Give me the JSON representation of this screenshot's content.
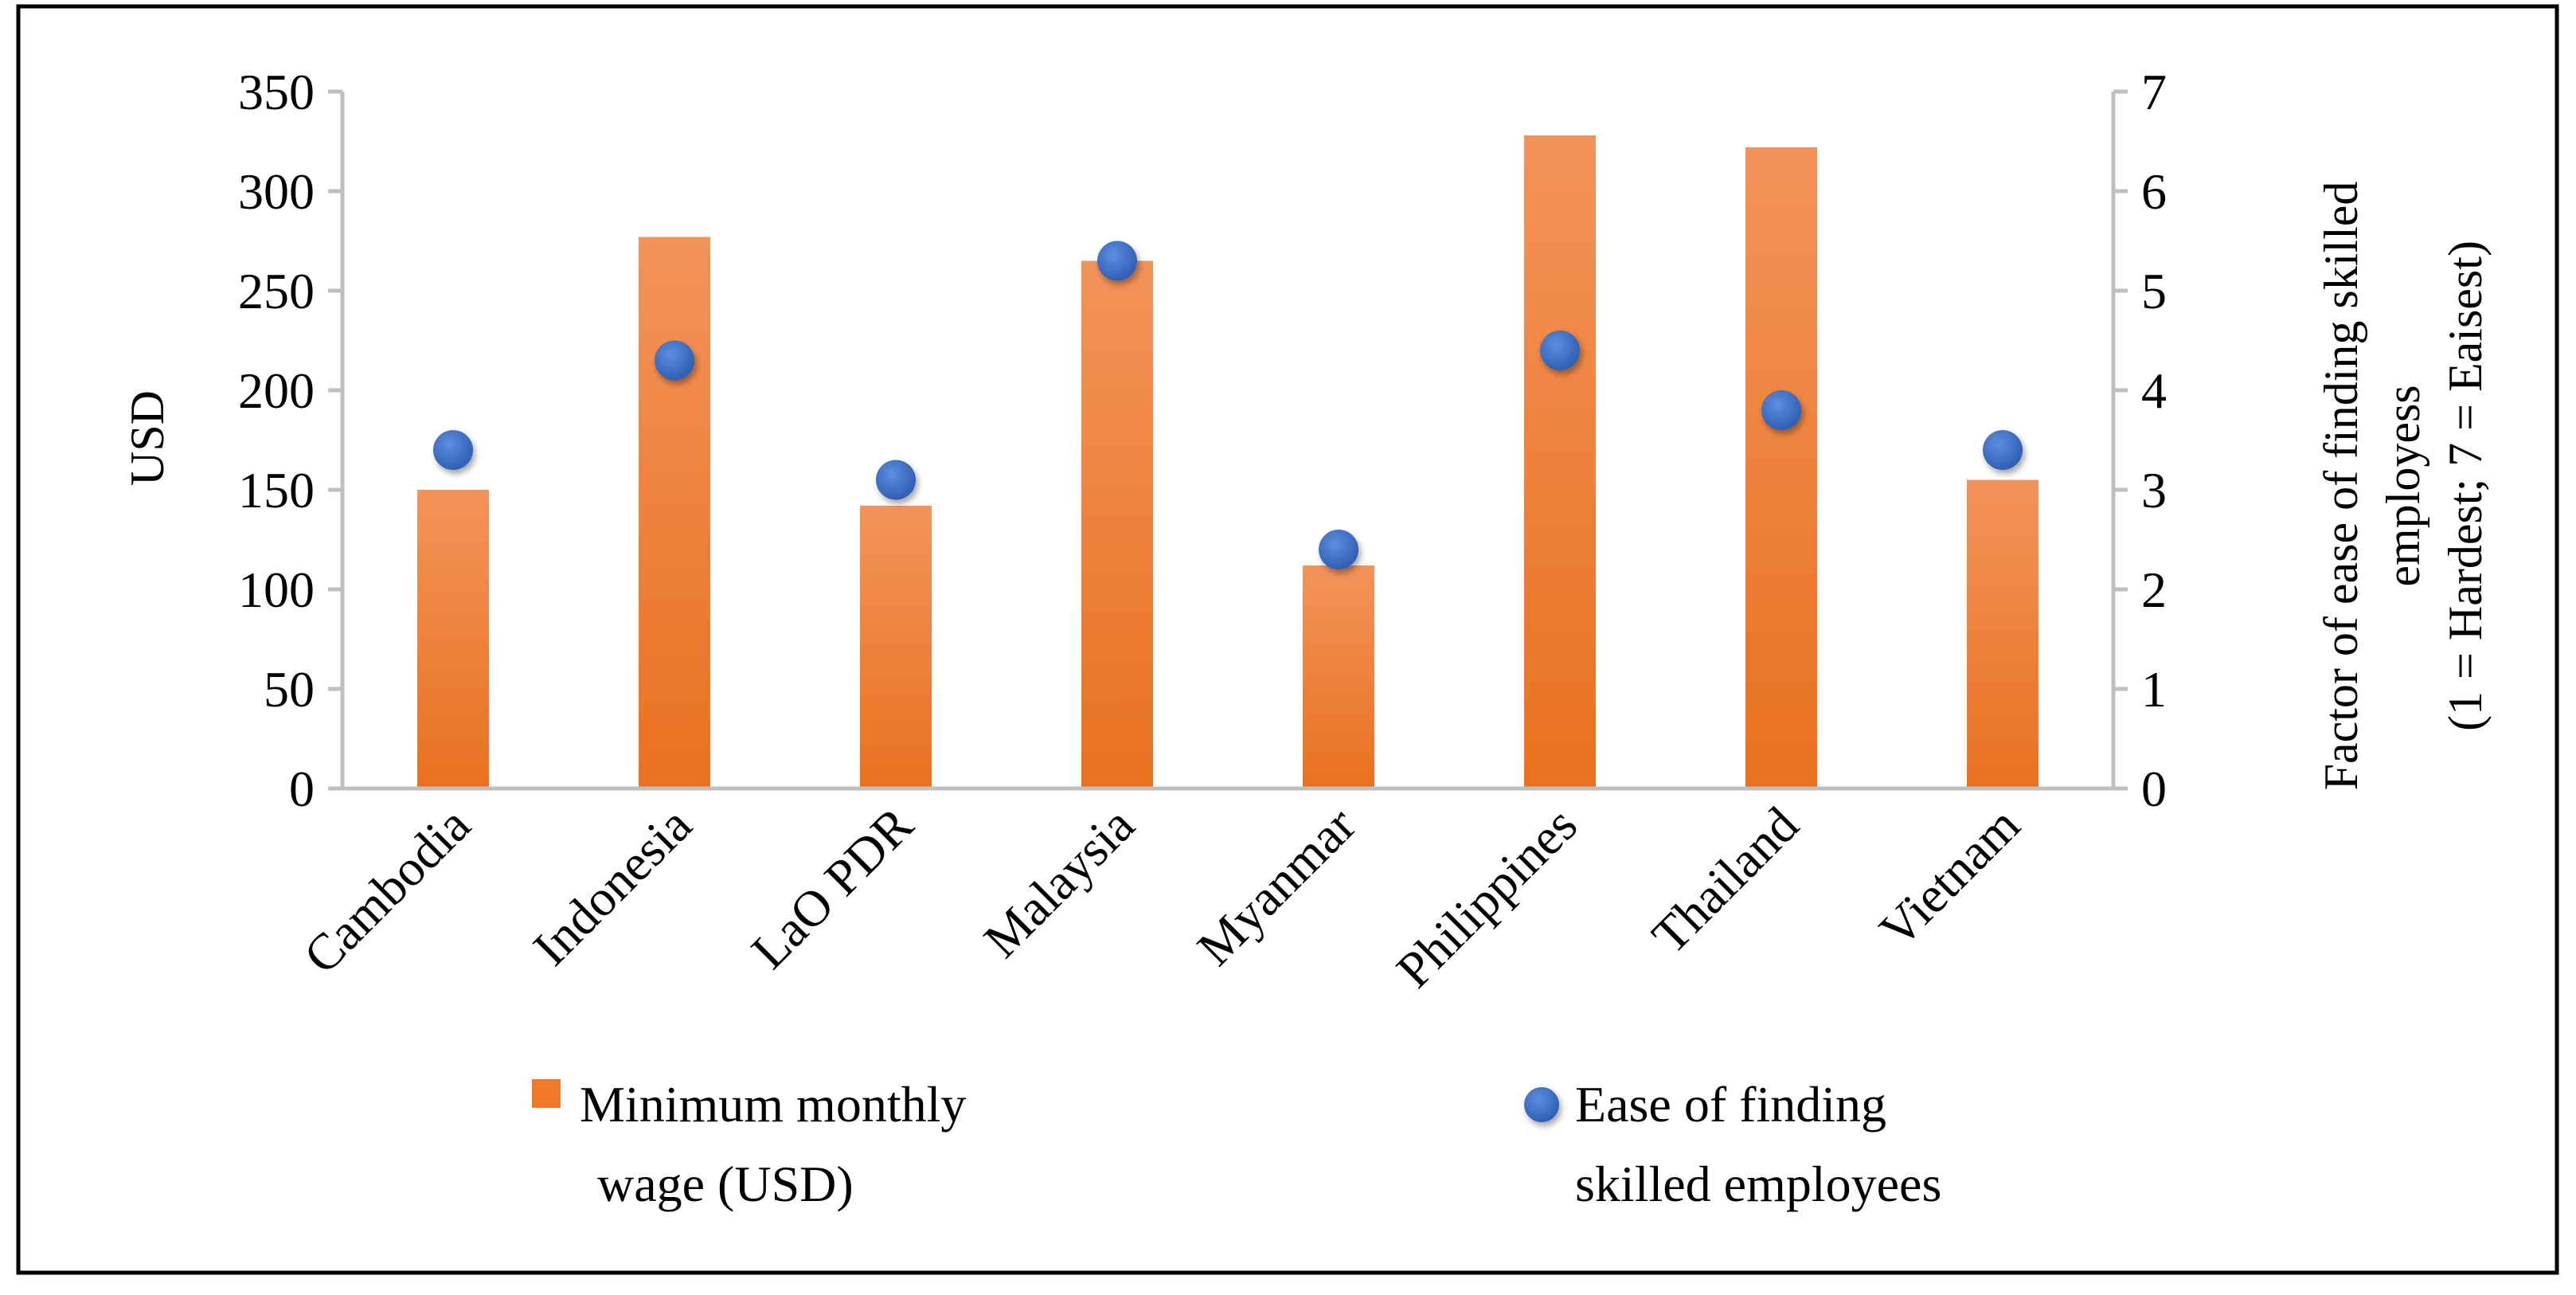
{
  "chart_data": {
    "type": "bar",
    "categories": [
      "Cambodia",
      "Indonesia",
      "LaO PDR",
      "Malaysia",
      "Myanmar",
      "Philippines",
      "Thailand",
      "Vietnam"
    ],
    "series": [
      {
        "name": "Minimum monthly wage (USD)",
        "type": "bar",
        "axis": "left",
        "color": "#F07A2A",
        "values": [
          150,
          277,
          142,
          265,
          112,
          328,
          322,
          155
        ]
      },
      {
        "name": "Ease of finding skilled employees",
        "type": "scatter",
        "axis": "right",
        "color": "#3A6FC6",
        "values": [
          3.4,
          4.3,
          3.1,
          5.3,
          2.4,
          4.4,
          3.8,
          3.4
        ]
      }
    ],
    "y_left": {
      "label": "USD",
      "ylim": [
        0,
        350
      ],
      "ticks": [
        "0",
        "50",
        "100",
        "150",
        "200",
        "250",
        "300",
        "350"
      ]
    },
    "y_right": {
      "label_lines": [
        "Factor of ease of finding skilled",
        "employess",
        "(1 = Hardest; 7 = Eaisest)"
      ],
      "ylim": [
        0,
        7
      ],
      "ticks": [
        "0",
        "1",
        "2",
        "3",
        "4",
        "5",
        "6",
        "7"
      ]
    },
    "legend": {
      "placement": "bottom",
      "entries": [
        {
          "lines": [
            "Minimum monthly",
            "wage (USD)"
          ],
          "marker": "square"
        },
        {
          "lines": [
            "Ease of finding",
            "skilled employees"
          ],
          "marker": "circle"
        }
      ]
    },
    "grid": false
  }
}
